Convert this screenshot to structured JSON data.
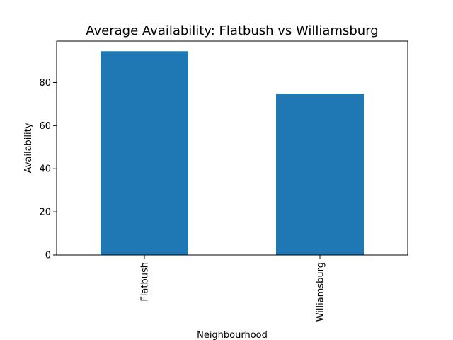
{
  "chart_data": {
    "type": "bar",
    "title": "Average Availability: Flatbush vs Williamsburg",
    "xlabel": "Neighbourhood",
    "ylabel": "Availability",
    "categories": [
      "Flatbush",
      "Williamsburg"
    ],
    "values": [
      94.5,
      74.8
    ],
    "ylim": [
      0,
      99.2
    ],
    "yticks": [
      0,
      20,
      40,
      60,
      80
    ],
    "grid": false,
    "bar_color": "#1f77b4"
  }
}
